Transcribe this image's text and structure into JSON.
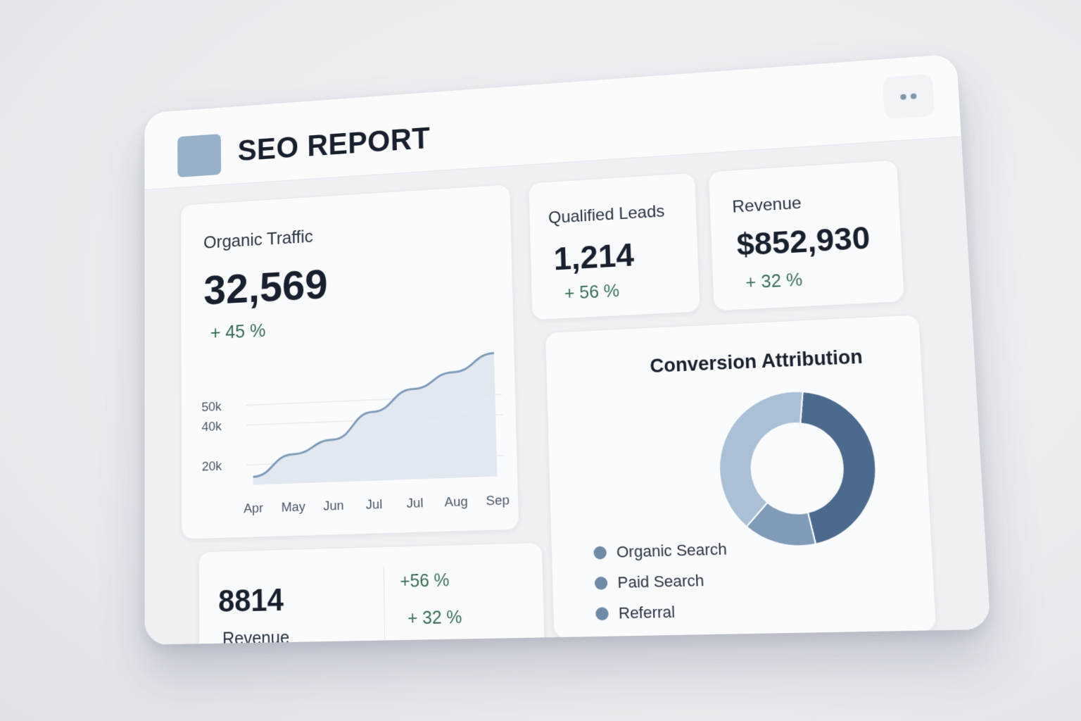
{
  "header": {
    "title": "SEO REPORT"
  },
  "traffic": {
    "label": "Organic Traffic",
    "value": "32,569",
    "delta": "+ 45 %"
  },
  "leads": {
    "label": "Qualified Leads",
    "value": "1,214",
    "delta": "+ 56 %"
  },
  "revenue": {
    "label": "Revenue",
    "value": "$852,930",
    "delta": "+ 32 %"
  },
  "summary": {
    "value": "8814",
    "label": "Revenue",
    "delta1": "+56 %",
    "delta2": "+ 32 %"
  },
  "conversion": {
    "title": "Conversion Attribution",
    "legend": [
      "Organic Search",
      "Paid Search",
      "Referral"
    ]
  },
  "colors": {
    "accent": "#98b1c9",
    "positive": "#3a6e55",
    "line": "#7f9bb8",
    "dark_slice": "#4b6a8e"
  },
  "chart_data": [
    {
      "type": "area",
      "title": "",
      "x": [
        "Apr",
        "May",
        "Jun",
        "Jul",
        "Jul",
        "Aug",
        "Sep"
      ],
      "series": [
        {
          "values": [
            14000,
            24500,
            31000,
            44000,
            54500,
            62000,
            70500
          ]
        }
      ],
      "yticks": [
        "20k",
        "40k",
        "50k"
      ],
      "ylim": [
        10000,
        72000
      ],
      "grid": true
    },
    {
      "type": "pie",
      "title": "Conversion Attribution",
      "categories": [
        "Organic Search",
        "Paid Search",
        "Referral"
      ],
      "values": [
        45,
        15,
        40
      ],
      "donut": true
    }
  ]
}
